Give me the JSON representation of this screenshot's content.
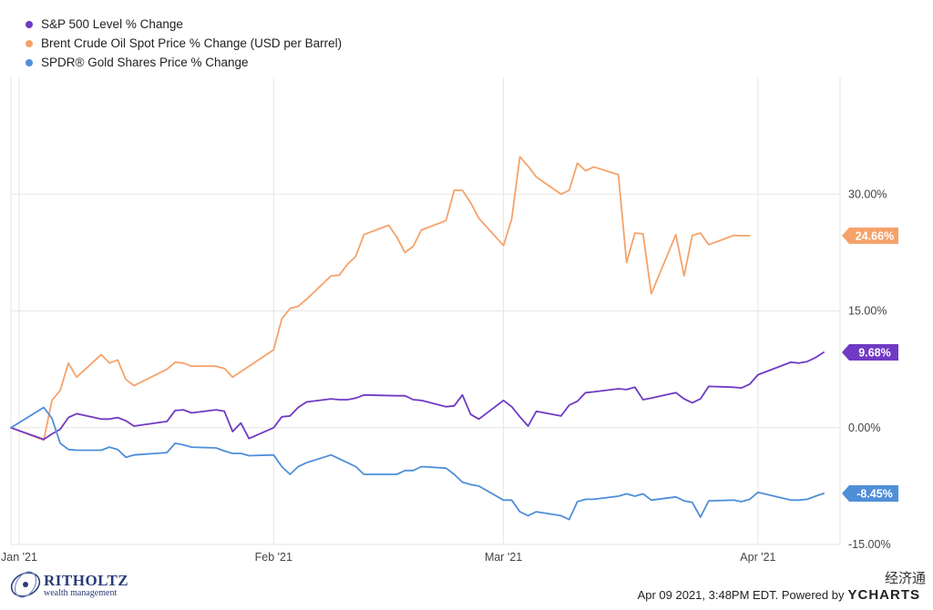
{
  "chart_data": {
    "type": "line",
    "x_dates": [
      "2020-12-31",
      "2021-01-04",
      "2021-01-05",
      "2021-01-06",
      "2021-01-07",
      "2021-01-08",
      "2021-01-11",
      "2021-01-12",
      "2021-01-13",
      "2021-01-14",
      "2021-01-15",
      "2021-01-18",
      "2021-01-19",
      "2021-01-20",
      "2021-01-21",
      "2021-01-22",
      "2021-01-25",
      "2021-01-26",
      "2021-01-27",
      "2021-01-28",
      "2021-01-29",
      "2021-02-01",
      "2021-02-02",
      "2021-02-03",
      "2021-02-04",
      "2021-02-05",
      "2021-02-08",
      "2021-02-09",
      "2021-02-10",
      "2021-02-11",
      "2021-02-12",
      "2021-02-15",
      "2021-02-16",
      "2021-02-17",
      "2021-02-18",
      "2021-02-19",
      "2021-02-22",
      "2021-02-23",
      "2021-02-24",
      "2021-02-25",
      "2021-02-26",
      "2021-03-01",
      "2021-03-02",
      "2021-03-03",
      "2021-03-04",
      "2021-03-05",
      "2021-03-08",
      "2021-03-09",
      "2021-03-10",
      "2021-03-11",
      "2021-03-12",
      "2021-03-15",
      "2021-03-16",
      "2021-03-17",
      "2021-03-18",
      "2021-03-19",
      "2021-03-22",
      "2021-03-23",
      "2021-03-24",
      "2021-03-25",
      "2021-03-26",
      "2021-03-29",
      "2021-03-30",
      "2021-03-31",
      "2021-04-01",
      "2021-04-05",
      "2021-04-06",
      "2021-04-07",
      "2021-04-08",
      "2021-04-09"
    ],
    "series": [
      {
        "name": "S&P 500 Level % Change",
        "color": "#6f3ac4",
        "values": [
          0.0,
          -1.5,
          -0.8,
          -0.2,
          1.3,
          1.8,
          1.1,
          1.1,
          1.3,
          0.9,
          0.2,
          null,
          0.8,
          2.2,
          2.3,
          1.9,
          2.3,
          2.1,
          -0.5,
          0.6,
          -1.4,
          0.0,
          1.4,
          1.5,
          2.6,
          3.3,
          3.7,
          3.6,
          3.6,
          3.8,
          4.2,
          null,
          4.1,
          4.1,
          3.6,
          3.5,
          2.7,
          2.8,
          4.2,
          1.7,
          1.1,
          3.5,
          2.7,
          1.4,
          0.2,
          2.1,
          1.5,
          2.9,
          3.4,
          4.5,
          4.6,
          5.0,
          4.9,
          5.2,
          3.6,
          3.8,
          4.5,
          3.7,
          3.2,
          3.7,
          5.3,
          5.2,
          5.1,
          5.6,
          6.8,
          8.4,
          8.3,
          8.5,
          9.0,
          9.68
        ]
      },
      {
        "name": "Brent Crude Oil Spot Price % Change (USD per Barrel)",
        "color": "#f5a26a",
        "values": [
          0.0,
          -1.6,
          3.5,
          4.8,
          8.3,
          6.5,
          9.4,
          8.3,
          8.7,
          6.2,
          5.4,
          null,
          7.5,
          8.4,
          8.3,
          7.9,
          7.9,
          7.6,
          6.5,
          7.2,
          7.9,
          10.0,
          14.0,
          15.3,
          15.6,
          16.5,
          19.5,
          19.6,
          21.0,
          22.0,
          24.8,
          26.0,
          24.5,
          22.5,
          23.3,
          25.4,
          26.6,
          30.5,
          30.5,
          28.9,
          26.9,
          23.4,
          26.8,
          34.8,
          33.6,
          32.2,
          30.0,
          30.5,
          34.0,
          33.0,
          33.5,
          32.5,
          21.2,
          25.0,
          24.9,
          17.2,
          24.8,
          19.5,
          24.7,
          25.0,
          23.5,
          24.7,
          24.66,
          24.66,
          null,
          null,
          null,
          null,
          null,
          null
        ]
      },
      {
        "name": "SPDR® Gold Shares Price % Change",
        "color": "#4f8fd8",
        "values": [
          0.0,
          2.6,
          1.2,
          -2.0,
          -2.8,
          -2.9,
          -2.9,
          -2.5,
          -2.8,
          -3.8,
          -3.5,
          null,
          -3.2,
          -2.0,
          -2.2,
          -2.5,
          -2.6,
          -3.0,
          -3.3,
          -3.3,
          -3.6,
          -3.5,
          -5.0,
          -6.0,
          -5.0,
          -4.5,
          -3.5,
          -4.0,
          -4.5,
          -5.0,
          -6.0,
          null,
          -6.0,
          -5.5,
          -5.5,
          -5.0,
          -5.2,
          -6.0,
          -7.0,
          -7.3,
          -7.5,
          -9.3,
          -9.3,
          -10.8,
          -11.3,
          -10.8,
          -11.3,
          -11.8,
          -9.5,
          -9.2,
          -9.2,
          -8.8,
          -8.5,
          -8.8,
          -8.5,
          -9.3,
          -8.9,
          -9.4,
          -9.6,
          -11.5,
          -9.4,
          -9.3,
          -9.5,
          -9.2,
          -8.3,
          -9.3,
          -9.3,
          -9.2,
          -8.8,
          -8.45
        ]
      }
    ],
    "end_labels": [
      "9.68%",
      "24.66%",
      "-8.45%"
    ],
    "y_ticks": [
      "30.00%",
      "15.00%",
      "0.00%",
      "-15.00%"
    ],
    "x_ticks": [
      "Jan '21",
      "Feb '21",
      "Mar '21",
      "Apr '21"
    ],
    "ylim": [
      -15,
      45
    ],
    "xlim": [
      "2020-12-31",
      "2021-04-11"
    ],
    "grid": true,
    "legend_placement": "top-left"
  },
  "footer": {
    "brand_name": "RITHOLTZ",
    "brand_sub": "wealth management",
    "timestamp": "Apr 09 2021, 3:48PM EDT.  Powered by",
    "ycharts": "YCHARTS",
    "cjk_watermark": "经济通"
  }
}
